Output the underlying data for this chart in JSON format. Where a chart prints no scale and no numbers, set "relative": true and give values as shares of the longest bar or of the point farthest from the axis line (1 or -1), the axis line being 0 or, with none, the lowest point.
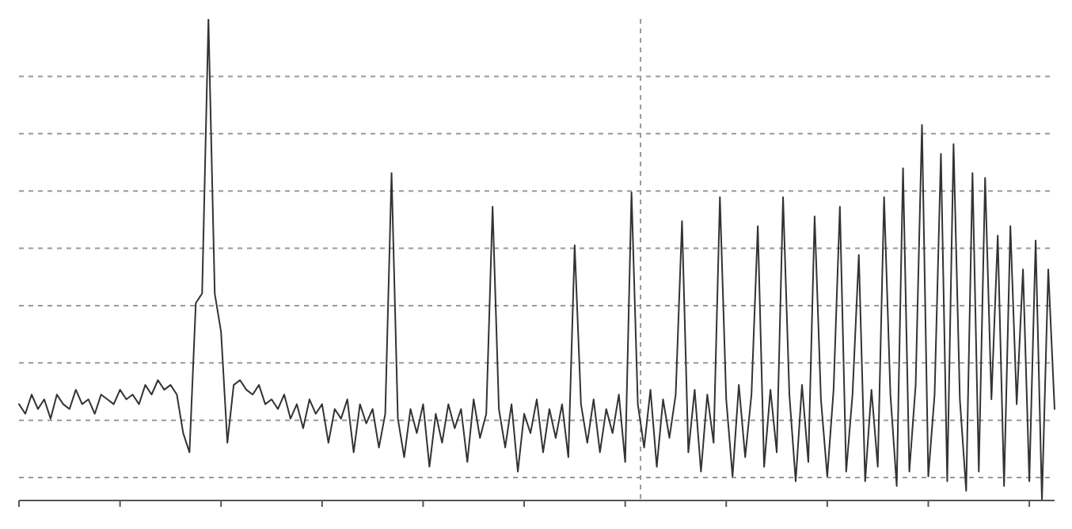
{
  "chart_data": {
    "type": "line",
    "relative": true,
    "grid": true,
    "marker": "none",
    "line_style": "solid",
    "categories": [
      null,
      null,
      null,
      null,
      null,
      null,
      null,
      null,
      null,
      null,
      null,
      null,
      null,
      null,
      null,
      null,
      null,
      null,
      null,
      null,
      null,
      null,
      null,
      null,
      null,
      null,
      null,
      null,
      null,
      null,
      null,
      null,
      null,
      null,
      null,
      null,
      null,
      null,
      null,
      null,
      null,
      null,
      null,
      null,
      null,
      null,
      null,
      null,
      null,
      null,
      null,
      null,
      null,
      null,
      null,
      null,
      null,
      null,
      null,
      null,
      null,
      null,
      null,
      null,
      null,
      null,
      null,
      null,
      null,
      null,
      null,
      null,
      null,
      null,
      null,
      null,
      null,
      null,
      null,
      null,
      null,
      null,
      null,
      null,
      null,
      null,
      null,
      null,
      null,
      null,
      null,
      null,
      null,
      null,
      null,
      null,
      null,
      null,
      null,
      null,
      null,
      null,
      null,
      null,
      null,
      null,
      null,
      null,
      null,
      null,
      null,
      null,
      null,
      null,
      null,
      null,
      null,
      null,
      null,
      null,
      null,
      null,
      null,
      null,
      null,
      null,
      null,
      null,
      null,
      null,
      null,
      null,
      null,
      null,
      null,
      null,
      null,
      null,
      null,
      null,
      null,
      null,
      null,
      null,
      null,
      null,
      null,
      null,
      null,
      null,
      null,
      null,
      null,
      null,
      null,
      null,
      null,
      null,
      null,
      null,
      null,
      null,
      null,
      null,
      null
    ],
    "series": [
      {
        "color": "#333333",
        "values": [
          0.2,
          0.18,
          0.22,
          0.19,
          0.21,
          0.17,
          0.22,
          0.2,
          0.19,
          0.23,
          0.2,
          0.21,
          0.18,
          0.22,
          0.21,
          0.2,
          0.23,
          0.21,
          0.22,
          0.2,
          0.24,
          0.22,
          0.25,
          0.23,
          0.24,
          0.22,
          0.14,
          0.1,
          0.41,
          0.43,
          1.0,
          0.43,
          0.35,
          0.12,
          0.24,
          0.25,
          0.23,
          0.22,
          0.24,
          0.2,
          0.21,
          0.19,
          0.22,
          0.17,
          0.2,
          0.15,
          0.21,
          0.18,
          0.2,
          0.12,
          0.19,
          0.17,
          0.21,
          0.1,
          0.2,
          0.16,
          0.19,
          0.11,
          0.18,
          0.68,
          0.17,
          0.09,
          0.19,
          0.14,
          0.2,
          0.07,
          0.18,
          0.12,
          0.2,
          0.15,
          0.19,
          0.08,
          0.21,
          0.13,
          0.18,
          0.61,
          0.19,
          0.11,
          0.2,
          0.06,
          0.18,
          0.14,
          0.21,
          0.1,
          0.19,
          0.13,
          0.2,
          0.09,
          0.53,
          0.2,
          0.12,
          0.21,
          0.1,
          0.19,
          0.14,
          0.22,
          0.08,
          0.64,
          0.2,
          0.11,
          0.23,
          0.07,
          0.21,
          0.13,
          0.22,
          0.58,
          0.1,
          0.23,
          0.06,
          0.22,
          0.12,
          0.63,
          0.21,
          0.05,
          0.24,
          0.09,
          0.22,
          0.57,
          0.07,
          0.23,
          0.1,
          0.63,
          0.22,
          0.04,
          0.24,
          0.08,
          0.59,
          0.21,
          0.05,
          0.23,
          0.61,
          0.06,
          0.22,
          0.51,
          0.04,
          0.23,
          0.07,
          0.63,
          0.22,
          0.03,
          0.69,
          0.06,
          0.24,
          0.78,
          0.05,
          0.22,
          0.72,
          0.04,
          0.74,
          0.21,
          0.02,
          0.68,
          0.06,
          0.67,
          0.21,
          0.55,
          0.03,
          0.57,
          0.2,
          0.48,
          0.04,
          0.54,
          0.0,
          0.48,
          0.19
        ]
      }
    ]
  }
}
